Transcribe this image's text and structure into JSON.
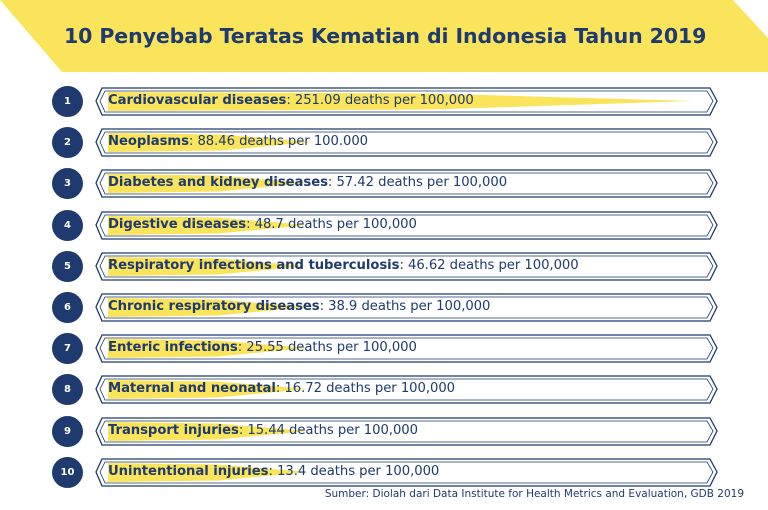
{
  "chart_data": {
    "type": "bar",
    "title": "10 Penyebab Teratas Kematian di Indonesia Tahun 2019",
    "unit_text": "deaths per",
    "categories": [
      "Cardiovascular diseases",
      "Neoplasms",
      "Diabetes and kidney diseases",
      "Digestive diseases",
      "Respiratory infections and tuberculosis",
      "Chronic respiratory diseases",
      "Enteric infections",
      "Maternal and neonatal",
      "Transport injuries",
      "Unintentional injuries"
    ],
    "values": [
      251.09,
      88.46,
      57.42,
      48.7,
      46.62,
      38.9,
      25.55,
      16.72,
      15.44,
      13.4
    ],
    "value_labels": [
      "251.09",
      "88.46",
      "57.42",
      "48.7",
      "46.62",
      "38.9",
      "25.55",
      "16.72",
      "15.44",
      "13.4"
    ],
    "per_labels": [
      "100,000",
      "100.000",
      "100,000",
      "100,000",
      "100,000",
      "100,000",
      "100,000",
      "100,000",
      "100,000",
      "100,000"
    ],
    "ranks": [
      "1",
      "2",
      "3",
      "4",
      "5",
      "6",
      "7",
      "8",
      "9",
      "10"
    ],
    "source": "Sumber: Diolah dari Data Institute for Health Metrics and Evaluation, GDB 2019"
  },
  "colors": {
    "navy": "#1f3a6e",
    "yellow": "#f9e45b",
    "white": "#ffffff"
  }
}
